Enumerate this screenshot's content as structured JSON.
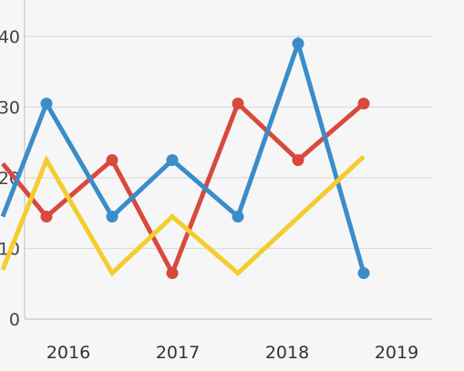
{
  "chart_data": {
    "type": "line",
    "x_ticks": [
      "2016",
      "2017",
      "2018",
      "2019"
    ],
    "y_ticks": [
      "0",
      "10",
      "20",
      "30",
      "40"
    ],
    "ylim": [
      0,
      40
    ],
    "grid": true,
    "series": [
      {
        "color": "#d9493d",
        "markers": true,
        "points": [
          {
            "x": 2015.4,
            "y": 22
          },
          {
            "x": 2015.8,
            "y": 14.5
          },
          {
            "x": 2016.4,
            "y": 22.5
          },
          {
            "x": 2016.95,
            "y": 6.5
          },
          {
            "x": 2017.55,
            "y": 30.5
          },
          {
            "x": 2018.1,
            "y": 22.5
          },
          {
            "x": 2018.7,
            "y": 30.5
          }
        ]
      },
      {
        "color": "#3a8dc9",
        "markers": true,
        "points": [
          {
            "x": 2015.4,
            "y": 14.5
          },
          {
            "x": 2015.8,
            "y": 30.5
          },
          {
            "x": 2016.4,
            "y": 14.5
          },
          {
            "x": 2016.95,
            "y": 22.5
          },
          {
            "x": 2017.55,
            "y": 14.5
          },
          {
            "x": 2018.1,
            "y": 39
          },
          {
            "x": 2018.7,
            "y": 6.5
          }
        ]
      },
      {
        "color": "#f3cd2f",
        "markers": false,
        "points": [
          {
            "x": 2015.4,
            "y": 7
          },
          {
            "x": 2015.8,
            "y": 22.5
          },
          {
            "x": 2016.4,
            "y": 6.5
          },
          {
            "x": 2016.95,
            "y": 14.5
          },
          {
            "x": 2017.55,
            "y": 6.5
          },
          {
            "x": 2018.7,
            "y": 23
          }
        ]
      }
    ]
  }
}
